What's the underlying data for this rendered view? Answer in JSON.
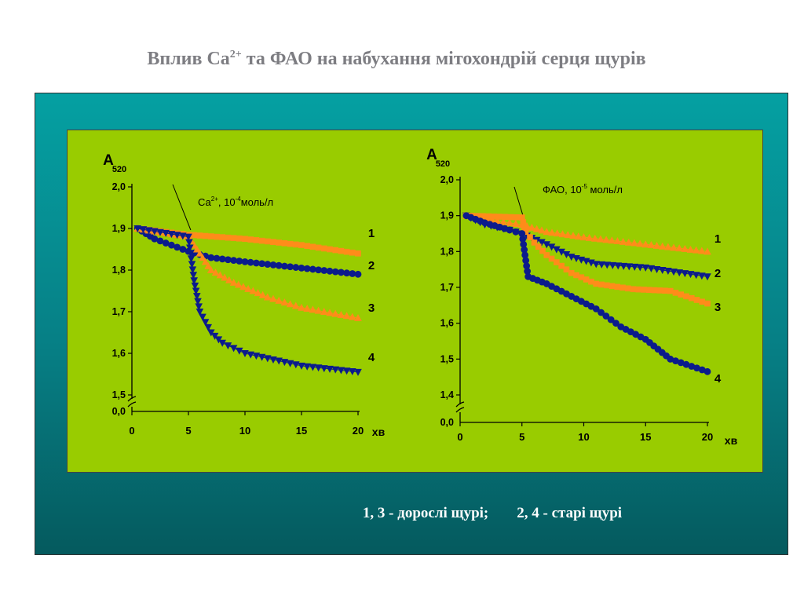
{
  "title": {
    "main": "Вплив Са",
    "sup": "2+",
    "rest": " та ФАО на набухання мітохондрій серця щурів"
  },
  "legend_note": {
    "adult": "1, 3 - дорослі щурі;",
    "old": "2, 4 - старі щурі"
  },
  "colors": {
    "navy": "#0b1b8c",
    "orange": "#ff8c1a",
    "panel_green": "#99cc00",
    "teal": "#067f85"
  },
  "chart_data": [
    {
      "type": "scatter",
      "ylabel_main": "A",
      "ylabel_sub": "520",
      "xlabel": "хв",
      "annotation": {
        "main": "Са",
        "sup1": "2+",
        "mid": ", 10",
        "sup2": "-4",
        "rest": "моль/л",
        "x": 5.2
      },
      "xlim": [
        0,
        20
      ],
      "ylim": [
        1.5,
        2.0
      ],
      "yticks": [
        "2,0",
        "1,9",
        "1,8",
        "1,7",
        "1,6",
        "1,5"
      ],
      "ytick_values": [
        2.0,
        1.9,
        1.8,
        1.7,
        1.6,
        1.5
      ],
      "break_label": "0,0",
      "xticks": [
        "0",
        "5",
        "10",
        "15",
        "20"
      ],
      "series": [
        {
          "name": "1",
          "marker": "square",
          "color": "#ff8c1a",
          "points": [
            [
              0.5,
              1.9
            ],
            [
              5,
              1.885
            ],
            [
              10,
              1.875
            ],
            [
              15,
              1.86
            ],
            [
              20,
              1.84
            ]
          ]
        },
        {
          "name": "2",
          "marker": "circle",
          "color": "#0b1b8c",
          "points": [
            [
              0.5,
              1.9
            ],
            [
              2,
              1.875
            ],
            [
              4,
              1.855
            ],
            [
              5,
              1.845
            ],
            [
              7,
              1.83
            ],
            [
              10,
              1.82
            ],
            [
              15,
              1.805
            ],
            [
              20,
              1.79
            ]
          ]
        },
        {
          "name": "3",
          "marker": "triangle-up",
          "color": "#ff8c1a",
          "points": [
            [
              0.5,
              1.9
            ],
            [
              5,
              1.88
            ],
            [
              6,
              1.84
            ],
            [
              7,
              1.8
            ],
            [
              9,
              1.77
            ],
            [
              12,
              1.735
            ],
            [
              15,
              1.71
            ],
            [
              20,
              1.685
            ]
          ]
        },
        {
          "name": "4",
          "marker": "triangle-down",
          "color": "#0b1b8c",
          "points": [
            [
              0.5,
              1.9
            ],
            [
              5,
              1.88
            ],
            [
              5.5,
              1.775
            ],
            [
              6,
              1.7
            ],
            [
              7,
              1.65
            ],
            [
              8,
              1.625
            ],
            [
              10,
              1.6
            ],
            [
              15,
              1.57
            ],
            [
              20,
              1.555
            ]
          ]
        }
      ]
    },
    {
      "type": "scatter",
      "ylabel_main": "A",
      "ylabel_sub": "520",
      "xlabel": "хв",
      "annotation": {
        "main": "ФАО, 10",
        "sup2": "-5",
        "rest": " моль/л",
        "x": 5.1
      },
      "xlim": [
        0,
        20
      ],
      "ylim": [
        1.4,
        2.0
      ],
      "yticks": [
        "2,0",
        "1,9",
        "1,8",
        "1,7",
        "1,6",
        "1,5",
        "1,4"
      ],
      "ytick_values": [
        2.0,
        1.9,
        1.8,
        1.7,
        1.6,
        1.5,
        1.4
      ],
      "break_label": "0,0",
      "xticks": [
        "0",
        "5",
        "10",
        "15",
        "20"
      ],
      "series": [
        {
          "name": "1",
          "marker": "triangle-up",
          "color": "#ff8c1a",
          "points": [
            [
              0.5,
              1.9
            ],
            [
              3,
              1.885
            ],
            [
              5,
              1.875
            ],
            [
              7,
              1.855
            ],
            [
              10,
              1.84
            ],
            [
              15,
              1.82
            ],
            [
              20,
              1.8
            ]
          ]
        },
        {
          "name": "2",
          "marker": "triangle-down",
          "color": "#0b1b8c",
          "points": [
            [
              0.5,
              1.9
            ],
            [
              2,
              1.875
            ],
            [
              4,
              1.86
            ],
            [
              5,
              1.85
            ],
            [
              7,
              1.82
            ],
            [
              9,
              1.785
            ],
            [
              11,
              1.765
            ],
            [
              15,
              1.755
            ],
            [
              20,
              1.73
            ]
          ]
        },
        {
          "name": "3",
          "marker": "square",
          "color": "#ff8c1a",
          "points": [
            [
              0.5,
              1.9
            ],
            [
              5,
              1.895
            ],
            [
              5.3,
              1.855
            ],
            [
              6,
              1.825
            ],
            [
              7,
              1.79
            ],
            [
              9,
              1.74
            ],
            [
              11,
              1.71
            ],
            [
              14,
              1.695
            ],
            [
              17,
              1.69
            ],
            [
              20,
              1.655
            ]
          ]
        },
        {
          "name": "4",
          "marker": "circle",
          "color": "#0b1b8c",
          "points": [
            [
              0.5,
              1.9
            ],
            [
              2,
              1.88
            ],
            [
              4,
              1.86
            ],
            [
              5,
              1.85
            ],
            [
              5.5,
              1.73
            ],
            [
              7,
              1.71
            ],
            [
              9,
              1.675
            ],
            [
              11,
              1.64
            ],
            [
              13,
              1.59
            ],
            [
              15,
              1.555
            ],
            [
              17,
              1.5
            ],
            [
              20,
              1.465
            ]
          ]
        }
      ]
    }
  ]
}
